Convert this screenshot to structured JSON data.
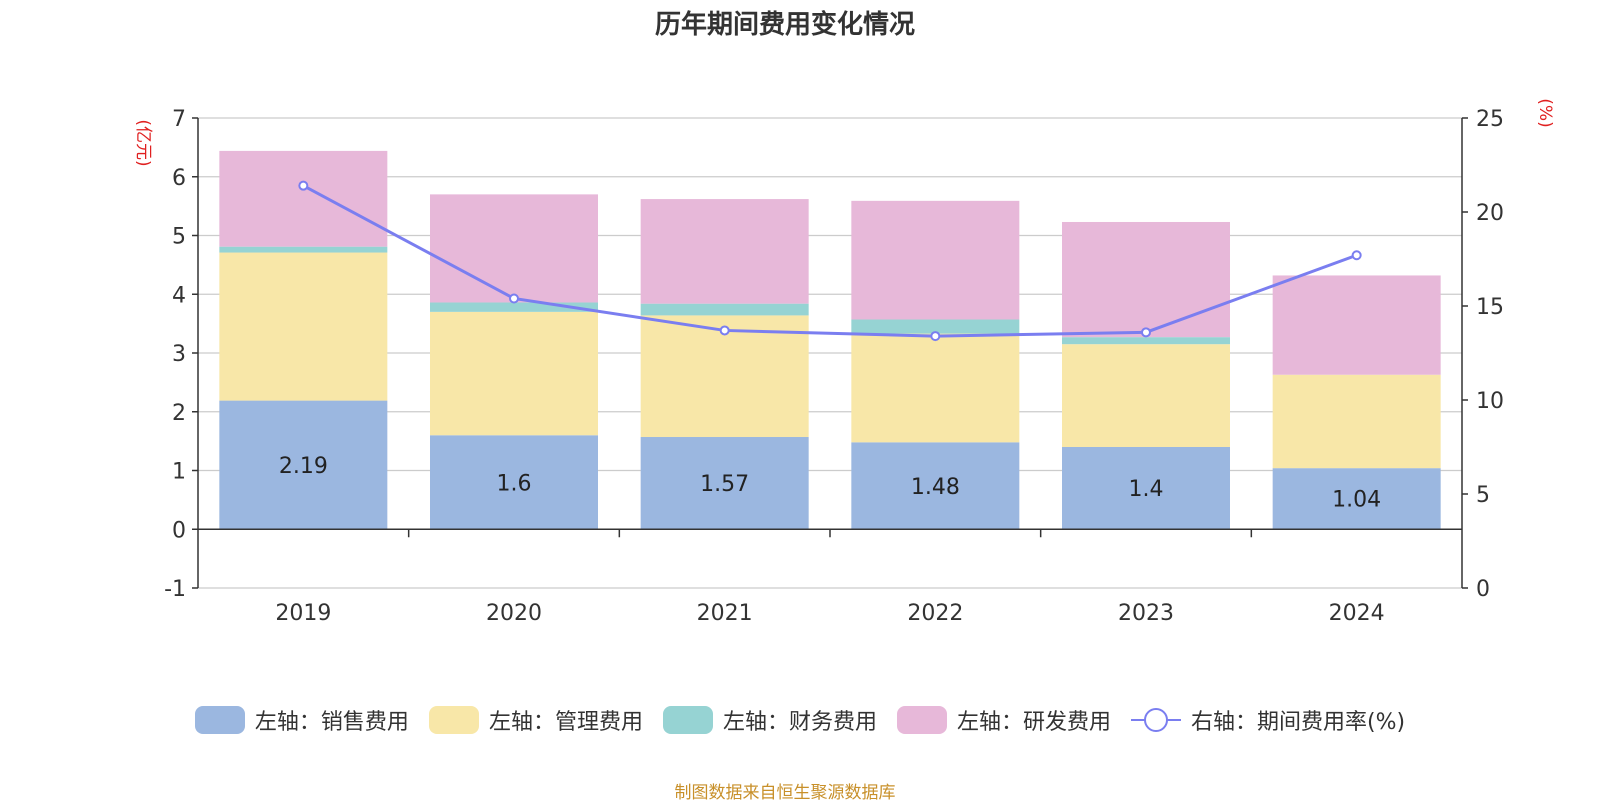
{
  "chart_data": {
    "type": "bar",
    "stacked": true,
    "title": "历年期间费用变化情况",
    "categories": [
      "2019",
      "2020",
      "2021",
      "2022",
      "2023",
      "2024"
    ],
    "left_axis": {
      "label": "(亿元)",
      "range": [
        -1,
        7
      ],
      "ticks": [
        "-1",
        "0",
        "1",
        "2",
        "3",
        "4",
        "5",
        "6",
        "7"
      ]
    },
    "right_axis": {
      "label": "(%)",
      "range": [
        0,
        25
      ],
      "ticks": [
        "0",
        "5",
        "10",
        "15",
        "20",
        "25"
      ]
    },
    "series": [
      {
        "name": "左轴：销售费用",
        "type": "bar",
        "axis": "left",
        "color": "#9bb7e0",
        "values": [
          2.19,
          1.6,
          1.57,
          1.48,
          1.4,
          1.04
        ],
        "labels": [
          "2.19",
          "1.6",
          "1.57",
          "1.48",
          "1.4",
          "1.04"
        ]
      },
      {
        "name": "左轴：管理费用",
        "type": "bar",
        "axis": "left",
        "color": "#f8e7a8",
        "values": [
          2.52,
          2.1,
          2.07,
          1.85,
          1.75,
          1.59
        ]
      },
      {
        "name": "左轴：财务费用",
        "type": "bar",
        "axis": "left",
        "color": "#96d3d3",
        "values": [
          0.1,
          0.16,
          0.2,
          0.24,
          0.12,
          0.0
        ]
      },
      {
        "name": "左轴：研发费用",
        "type": "bar",
        "axis": "left",
        "color": "#e7b8d9",
        "values": [
          1.63,
          1.84,
          1.78,
          2.02,
          1.96,
          1.69
        ]
      },
      {
        "name": "右轴：期间费用率(%)",
        "type": "line",
        "axis": "right",
        "color": "#7a7ef0",
        "values": [
          21.4,
          15.4,
          13.7,
          13.4,
          13.6,
          17.7
        ]
      }
    ],
    "source": "制图数据来自恒生聚源数据库"
  }
}
